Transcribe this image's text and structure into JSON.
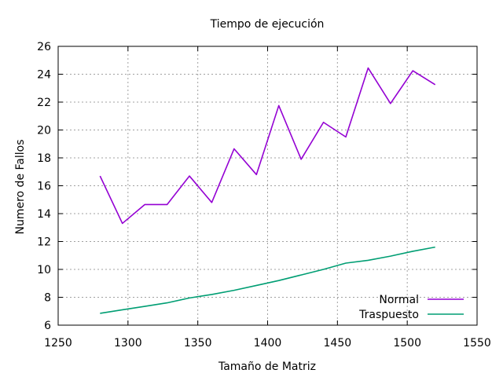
{
  "chart_data": {
    "type": "line",
    "title": "Tiempo de ejecución",
    "xlabel": "Tamaño de Matriz",
    "ylabel": "Numero de Fallos",
    "xlim": [
      1250,
      1550
    ],
    "ylim": [
      6,
      26
    ],
    "xticks": [
      1250,
      1300,
      1350,
      1400,
      1450,
      1500,
      1550
    ],
    "yticks": [
      6,
      8,
      10,
      12,
      14,
      16,
      18,
      20,
      22,
      24,
      26
    ],
    "grid": true,
    "legend_position": "bottom-right",
    "x": [
      1280,
      1296,
      1312,
      1328,
      1344,
      1360,
      1376,
      1392,
      1408,
      1424,
      1440,
      1456,
      1472,
      1488,
      1504,
      1520
    ],
    "series": [
      {
        "name": "Normal",
        "color": "#9400d3",
        "values": [
          16.7,
          13.3,
          14.65,
          14.65,
          16.7,
          14.8,
          18.65,
          16.8,
          21.75,
          17.9,
          20.55,
          19.5,
          24.45,
          21.9,
          24.25,
          23.25
        ]
      },
      {
        "name": "Traspuesto",
        "color": "#009e73",
        "values": [
          6.85,
          7.1,
          7.35,
          7.6,
          7.95,
          8.2,
          8.5,
          8.85,
          9.2,
          9.6,
          10.0,
          10.45,
          10.65,
          10.95,
          11.3,
          11.6
        ]
      }
    ]
  }
}
